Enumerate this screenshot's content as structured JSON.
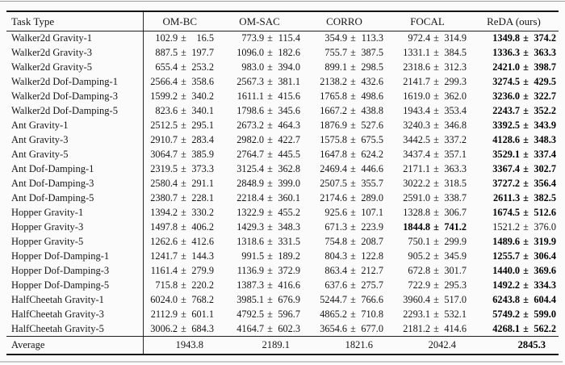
{
  "table": {
    "columns": [
      {
        "key": "task-type",
        "label": "Task Type"
      },
      {
        "key": "om-bc",
        "label": "OM-BC"
      },
      {
        "key": "om-sac",
        "label": "OM-SAC"
      },
      {
        "key": "corro",
        "label": "CORRO"
      },
      {
        "key": "focal",
        "label": "FOCAL"
      },
      {
        "key": "reda-ours",
        "label": "ReDA (ours)"
      }
    ],
    "rows": [
      {
        "task": "Walker2d Gravity-1",
        "values": [
          "102.9 ± 16.5",
          "773.9 ± 115.4",
          "354.9 ± 113.3",
          "972.4 ± 314.9",
          "1349.8 ± 374.2"
        ],
        "bold_col": 4
      },
      {
        "task": "Walker2d Gravity-3",
        "values": [
          "887.5 ± 197.7",
          "1096.0 ± 182.6",
          "755.7 ± 387.5",
          "1331.1 ± 384.5",
          "1336.3 ± 363.3"
        ],
        "bold_col": 4
      },
      {
        "task": "Walker2d Gravity-5",
        "values": [
          "655.4 ± 253.2",
          "983.0 ± 394.0",
          "899.1 ± 298.5",
          "2318.6 ± 312.3",
          "2421.0 ± 398.7"
        ],
        "bold_col": 4
      },
      {
        "task": "Walker2d Dof-Damping-1",
        "values": [
          "2566.4 ± 358.6",
          "2567.3 ± 381.1",
          "2138.2 ± 432.6",
          "2141.7 ± 299.3",
          "3274.5 ± 429.5"
        ],
        "bold_col": 4
      },
      {
        "task": "Walker2d Dof-Damping-3",
        "values": [
          "1599.2 ± 340.2",
          "1611.1 ± 415.6",
          "1765.8 ± 498.6",
          "1619.0 ± 362.0",
          "3236.0 ± 322.7"
        ],
        "bold_col": 4
      },
      {
        "task": "Walker2d Dof-Damping-5",
        "values": [
          "823.6 ± 340.1",
          "1798.6 ± 345.6",
          "1667.2 ± 438.8",
          "1943.4 ± 353.4",
          "2243.7 ± 352.2"
        ],
        "bold_col": 4
      },
      {
        "task": "Ant Gravity-1",
        "values": [
          "2512.5 ± 295.1",
          "2673.2 ± 464.3",
          "1876.9 ± 527.6",
          "3240.3 ± 346.8",
          "3392.5 ± 343.9"
        ],
        "bold_col": 4
      },
      {
        "task": "Ant Gravity-3",
        "values": [
          "2910.7 ± 283.4",
          "2982.0 ± 422.7",
          "1575.8 ± 675.5",
          "3442.5 ± 337.2",
          "4128.6 ± 348.3"
        ],
        "bold_col": 4
      },
      {
        "task": "Ant Gravity-5",
        "values": [
          "3064.7 ± 385.9",
          "2764.7 ± 445.5",
          "1647.8 ± 624.2",
          "3437.4 ± 357.1",
          "3529.1 ± 337.4"
        ],
        "bold_col": 4
      },
      {
        "task": "Ant Dof-Damping-1",
        "values": [
          "2319.5 ± 373.3",
          "3125.4 ± 362.8",
          "2469.4 ± 446.6",
          "2171.1 ± 363.3",
          "3367.4 ± 302.7"
        ],
        "bold_col": 4
      },
      {
        "task": "Ant Dof-Damping-3",
        "values": [
          "2580.4 ± 291.1",
          "2848.9 ± 399.0",
          "2507.5 ± 355.7",
          "3022.2 ± 318.5",
          "3727.2 ± 356.4"
        ],
        "bold_col": 4
      },
      {
        "task": "Ant Dof-Damping-5",
        "values": [
          "2380.7 ± 228.1",
          "2218.4 ± 360.1",
          "2174.6 ± 289.0",
          "2591.0 ± 338.7",
          "2611.3 ± 382.5"
        ],
        "bold_col": 4
      },
      {
        "task": "Hopper Gravity-1",
        "values": [
          "1394.2 ± 330.2",
          "1322.9 ± 455.2",
          "925.6 ± 107.1",
          "1328.8 ± 306.7",
          "1674.5 ± 512.6"
        ],
        "bold_col": 4
      },
      {
        "task": "Hopper Gravity-3",
        "values": [
          "1497.8 ± 406.2",
          "1429.3 ± 348.3",
          "671.3 ± 223.9",
          "1844.8 ± 741.2",
          "1521.2 ± 376.0"
        ],
        "bold_col": 3
      },
      {
        "task": "Hopper Gravity-5",
        "values": [
          "1262.6 ± 412.6",
          "1318.6 ± 331.5",
          "754.8 ± 208.7",
          "750.1 ± 299.9",
          "1489.6 ± 319.9"
        ],
        "bold_col": 4
      },
      {
        "task": "Hopper Dof-Damping-1",
        "values": [
          "1241.7 ± 144.3",
          "991.5 ± 189.2",
          "804.3 ± 122.8",
          "905.2 ± 345.9",
          "1255.7 ± 306.4"
        ],
        "bold_col": 4
      },
      {
        "task": "Hopper Dof-Damping-3",
        "values": [
          "1161.4 ± 279.9",
          "1136.9 ± 372.9",
          "863.4 ± 212.7",
          "672.8 ± 301.7",
          "1440.0 ± 369.6"
        ],
        "bold_col": 4
      },
      {
        "task": "Hopper Dof-Damping-5",
        "values": [
          "715.8 ± 220.2",
          "1387.3 ± 416.6",
          "637.6 ± 275.7",
          "722.9 ± 295.3",
          "1492.2 ± 334.3"
        ],
        "bold_col": 4
      },
      {
        "task": "HalfCheetah Gravity-1",
        "values": [
          "6024.0 ± 768.2",
          "3985.1 ± 676.9",
          "5244.7 ± 766.6",
          "3960.4 ± 517.0",
          "6243.8 ± 604.4"
        ],
        "bold_col": 4
      },
      {
        "task": "HalfCheetah Gravity-3",
        "values": [
          "2112.9 ± 601.1",
          "4792.5 ± 596.7",
          "4865.2 ± 710.8",
          "2293.1 ± 532.1",
          "5749.2 ± 599.0"
        ],
        "bold_col": 4
      },
      {
        "task": "HalfCheetah Gravity-5",
        "values": [
          "3006.2 ± 684.3",
          "4164.7 ± 602.3",
          "3654.6 ± 677.0",
          "2181.2 ± 414.6",
          "4268.1 ± 562.2"
        ],
        "bold_col": 4
      }
    ],
    "average": {
      "task": "Average",
      "values": [
        "1943.8",
        "2189.1",
        "1821.6",
        "2042.4",
        "2845.3"
      ],
      "bold_col": 4
    }
  }
}
